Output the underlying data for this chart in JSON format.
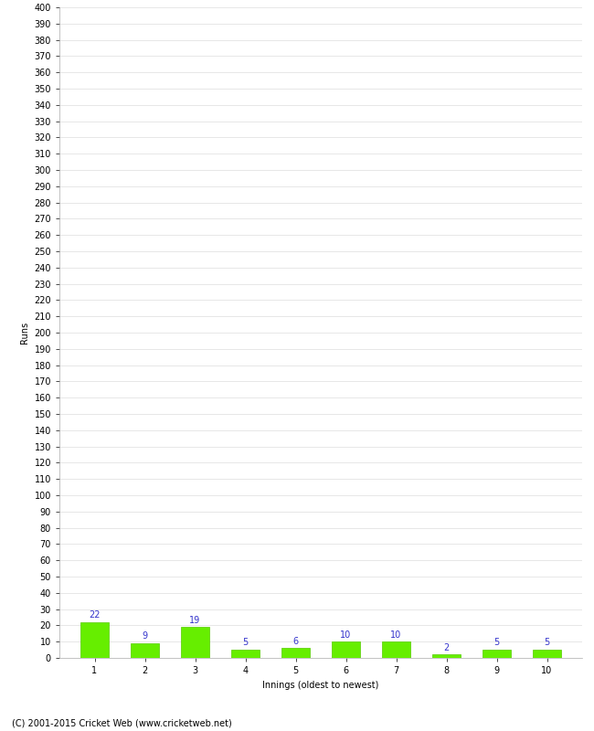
{
  "categories": [
    "1",
    "2",
    "3",
    "4",
    "5",
    "6",
    "7",
    "8",
    "9",
    "10"
  ],
  "values": [
    22,
    9,
    19,
    5,
    6,
    10,
    10,
    2,
    5,
    5
  ],
  "bar_color": "#66ee00",
  "bar_edge_color": "#55cc00",
  "label_color": "#3333cc",
  "ylabel": "Runs",
  "xlabel": "Innings (oldest to newest)",
  "ylim": [
    0,
    400
  ],
  "ytick_step": 10,
  "footer": "(C) 2001-2015 Cricket Web (www.cricketweb.net)",
  "grid_color": "#dddddd",
  "background_color": "#ffffff",
  "tick_fontsize": 7,
  "label_fontsize": 7,
  "value_fontsize": 7,
  "footer_fontsize": 7
}
